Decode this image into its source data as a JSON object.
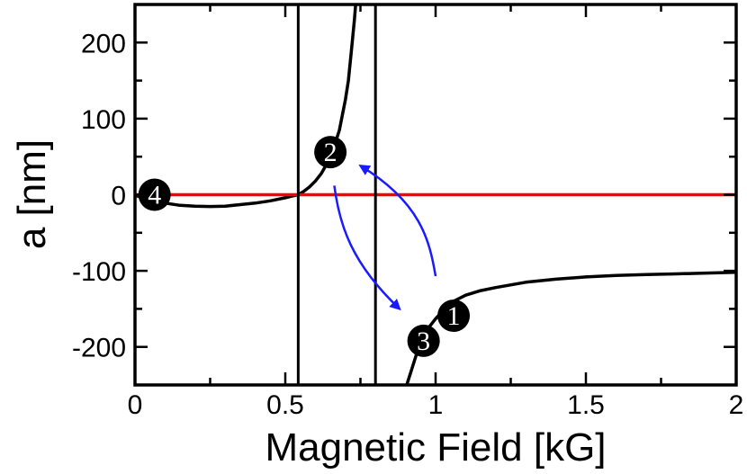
{
  "chart_data": {
    "type": "line",
    "xlabel": "Magnetic Field [kG]",
    "ylabel": "a [nm]",
    "xlim": [
      0,
      2
    ],
    "ylim": [
      -250,
      250
    ],
    "x_ticks": [
      0,
      0.5,
      1,
      1.5,
      2
    ],
    "x_tick_labels": [
      "0",
      "0.5",
      "1",
      "1.5",
      "2"
    ],
    "y_ticks": [
      200,
      100,
      0,
      -100,
      -200
    ],
    "y_tick_labels": [
      "200",
      "100",
      "0",
      "-100",
      "-200"
    ],
    "grid": false,
    "vertical_lines": [
      0.543,
      0.8
    ],
    "series": [
      {
        "color": "#000000",
        "x": [
          0,
          0.05,
          0.1,
          0.15,
          0.2,
          0.25,
          0.3,
          0.35,
          0.4,
          0.45,
          0.5,
          0.52,
          0.543,
          0.56,
          0.58,
          0.6,
          0.62,
          0.64,
          0.66,
          0.68,
          0.7,
          0.71,
          0.72,
          0.73,
          0.735
        ],
        "y": [
          -1,
          -6,
          -11,
          -14,
          -15,
          -15.5,
          -15,
          -13,
          -11,
          -8,
          -4,
          -2,
          0,
          4,
          10,
          18,
          28,
          42,
          60,
          85,
          125,
          150,
          190,
          230,
          255
        ]
      },
      {
        "color": "#000000",
        "x": [
          0.9,
          0.92,
          0.94,
          0.96,
          0.98,
          1.0,
          1.03,
          1.06,
          1.1,
          1.15,
          1.2,
          1.3,
          1.4,
          1.5,
          1.6,
          1.7,
          1.8,
          1.9,
          2.0
        ],
        "y": [
          -255,
          -230,
          -205,
          -188,
          -173,
          -163,
          -150,
          -140,
          -132,
          -126,
          -122,
          -115,
          -111,
          -108,
          -106,
          -105,
          -104,
          -103,
          -102
        ]
      },
      {
        "color": "#ff0000",
        "x": [
          0,
          2
        ],
        "y": [
          0,
          0
        ]
      }
    ],
    "arrows": [
      {
        "color": "#1a1aff",
        "points": [
          [
            0.663,
            12
          ],
          [
            0.68,
            -40
          ],
          [
            0.72,
            -90
          ],
          [
            0.88,
            -150
          ]
        ]
      },
      {
        "color": "#1a1aff",
        "points": [
          [
            1.0,
            -107
          ],
          [
            0.98,
            -60
          ],
          [
            0.95,
            -10
          ],
          [
            0.75,
            38
          ]
        ]
      }
    ],
    "markers": [
      {
        "label": "1",
        "x": 1.06,
        "y": -159
      },
      {
        "label": "2",
        "x": 0.65,
        "y": 56
      },
      {
        "label": "3",
        "x": 0.96,
        "y": -192
      },
      {
        "label": "4",
        "x": 0.065,
        "y": 0
      }
    ],
    "colors": {
      "curve": "#000000",
      "zero_line": "#ff0000",
      "arrow": "#1a1aff",
      "marker": "#000000"
    }
  }
}
